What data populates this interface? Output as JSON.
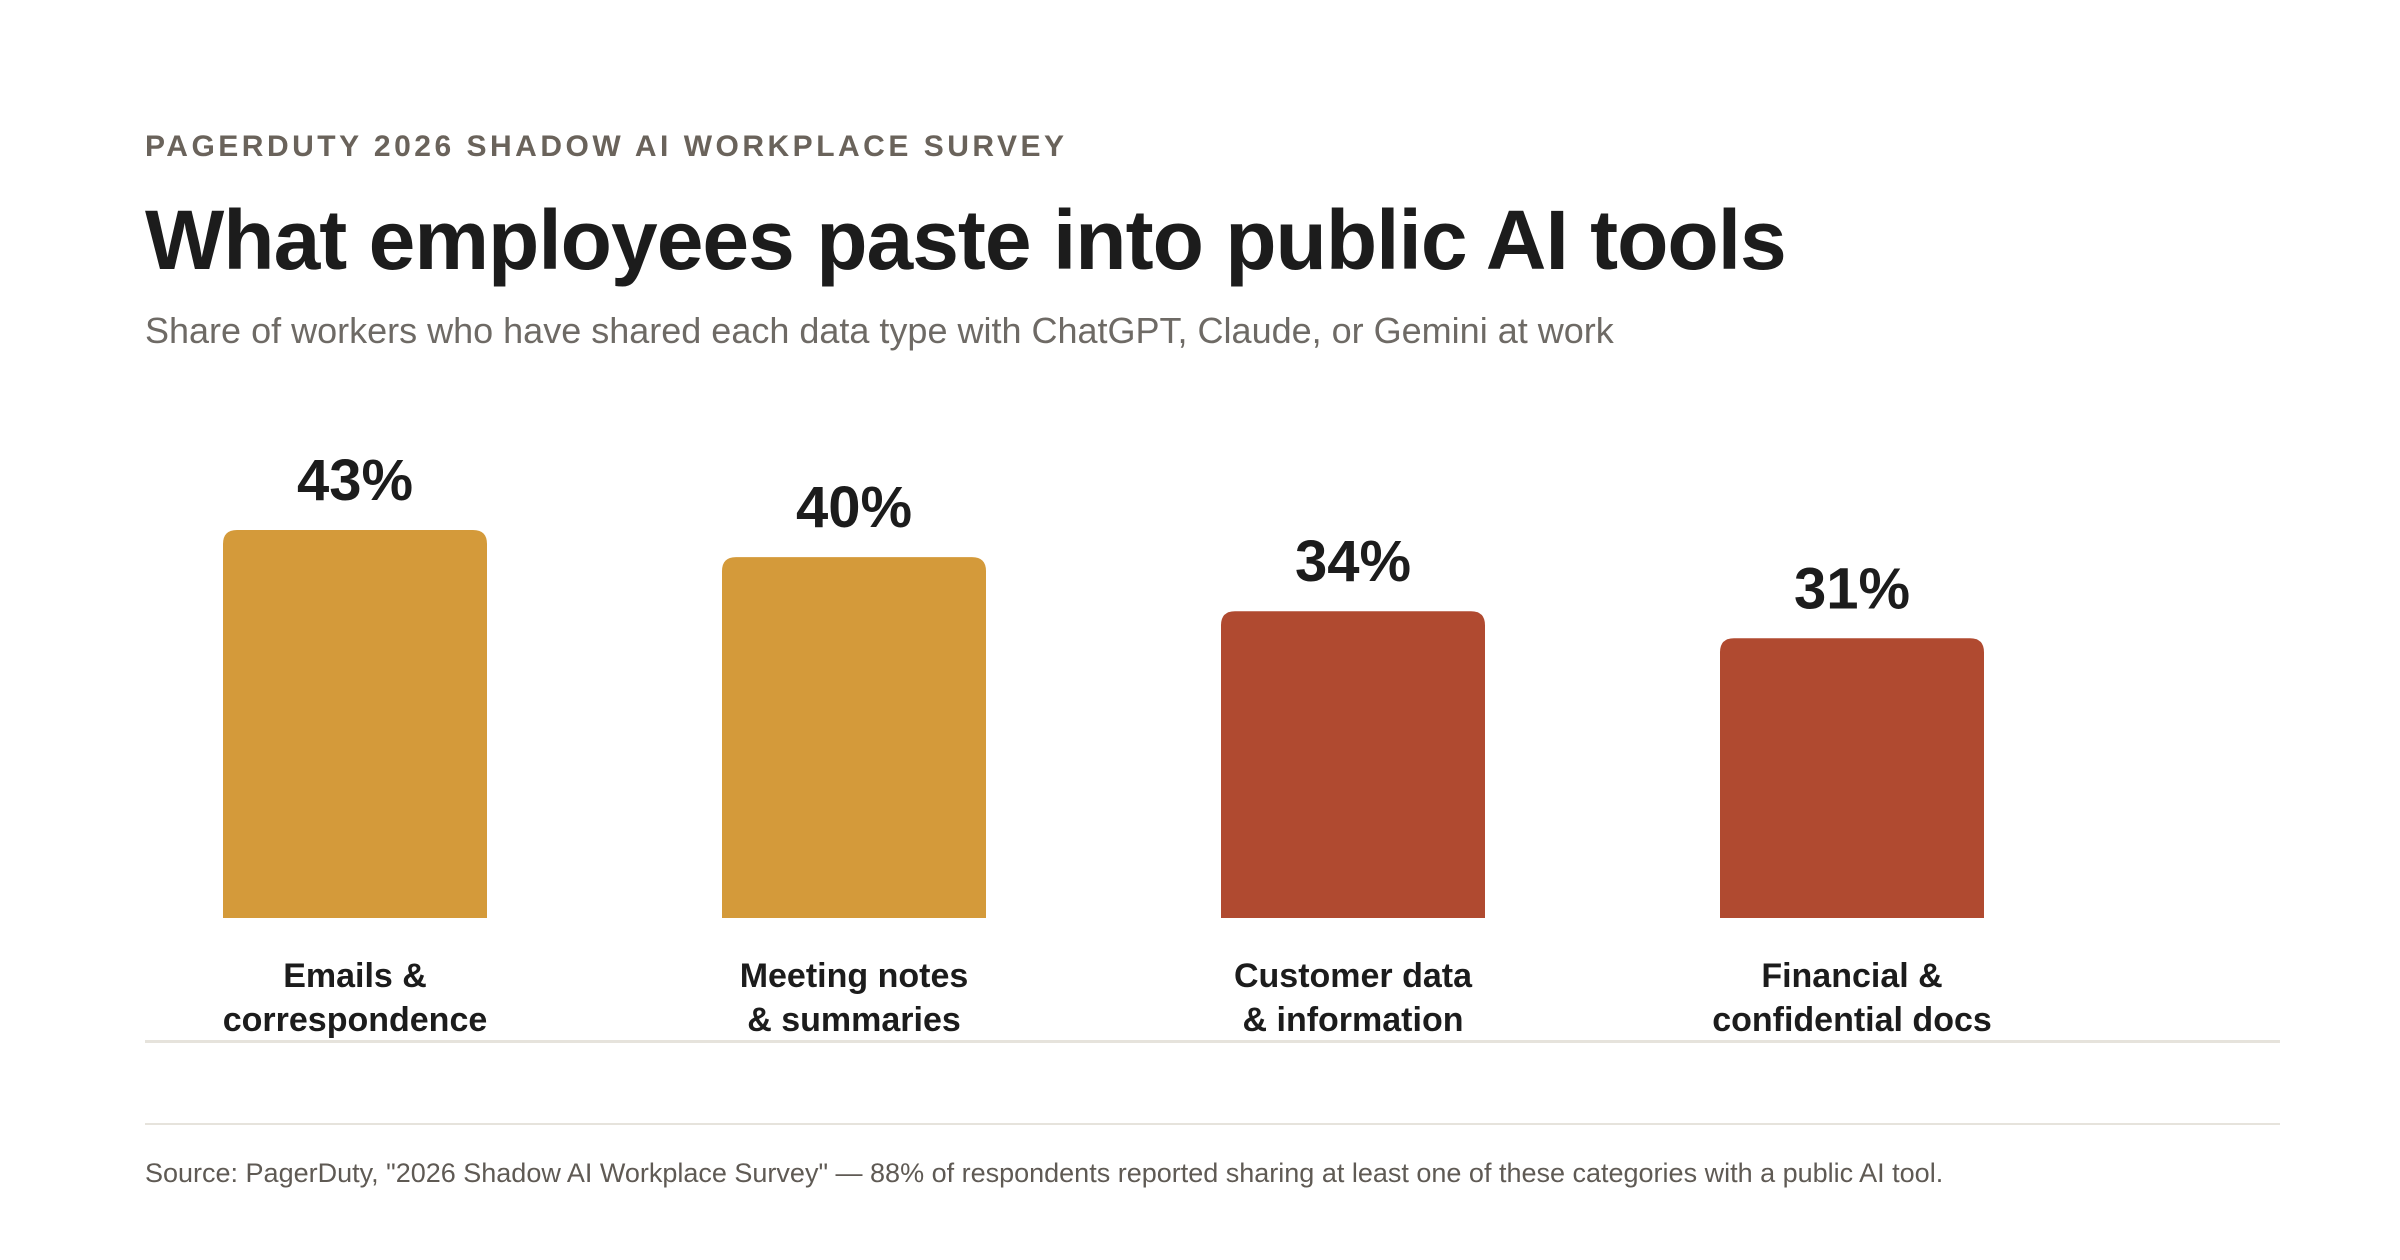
{
  "header": {
    "eyebrow": "PAGERDUTY 2026 SHADOW AI WORKPLACE SURVEY",
    "title": "What employees paste into public AI tools",
    "subtitle": "Share of workers who have shared each data type with ChatGPT, Claude, or Gemini at work"
  },
  "chart_data": {
    "type": "bar",
    "categories": [
      [
        "Emails &",
        "correspondence"
      ],
      [
        "Meeting notes",
        "& summaries"
      ],
      [
        "Customer data",
        "& information"
      ],
      [
        "Financial &",
        "confidential docs"
      ]
    ],
    "values": [
      43,
      40,
      34,
      31
    ],
    "value_labels": [
      "43%",
      "40%",
      "34%",
      "31%"
    ],
    "bar_colors": [
      "#d49a3a",
      "#d49a3a",
      "#b04a30",
      "#b04a30"
    ],
    "ylim": [
      0,
      43
    ],
    "grid": false,
    "legend": "none",
    "baseline_color": "#e6e3dc"
  },
  "footer": {
    "source": "Source: PagerDuty, \"2026 Shadow AI Workplace Survey\" — 88% of respondents reported sharing at least one of these categories with a public AI tool."
  }
}
